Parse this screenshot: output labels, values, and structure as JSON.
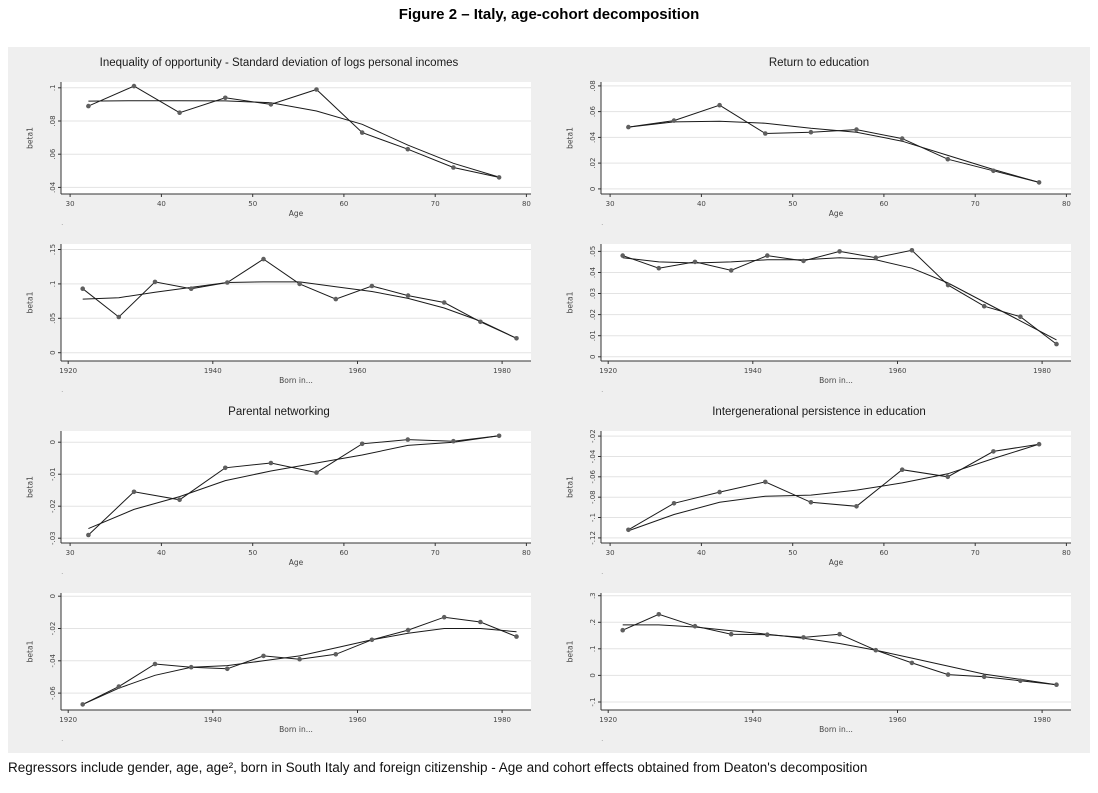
{
  "page": {
    "title": "Figure 2 – Italy, age-cohort decomposition",
    "caption": "Regressors include gender, age, age², born in South Italy and foreign citizenship - Age and cohort effects obtained from Deaton's decomposition"
  },
  "colors": {
    "figure_bg": "#efefef",
    "plot_bg": "#ffffff",
    "grid": "#e3e3e3",
    "axis": "#333333",
    "line": "#1a1a1a",
    "marker": "#5f5f5f",
    "tick_text": "#454545"
  },
  "panels": [
    {
      "title": "Inequality of opportunity - Standard deviation of logs personal incomes",
      "note": "."
    },
    {
      "title": "Return to education",
      "note": "."
    },
    {
      "title": "Parental networking",
      "note": "."
    },
    {
      "title": "Intergenerational persistence in education",
      "note": "."
    }
  ],
  "chart_data": [
    {
      "type": "line",
      "panel": 0,
      "role": "age-effect",
      "xlabel": "Age",
      "ylabel": "beta1",
      "note": ".",
      "x": [
        32,
        37,
        42,
        47,
        52,
        57,
        62,
        67,
        72,
        77
      ],
      "series": [
        {
          "name": "estimate",
          "values": [
            0.089,
            0.101,
            0.085,
            0.094,
            0.09,
            0.099,
            0.073,
            0.063,
            0.052,
            0.046
          ]
        },
        {
          "name": "smooth",
          "values": [
            0.092,
            0.0922,
            0.0922,
            0.0921,
            0.091,
            0.086,
            0.078,
            0.0655,
            0.0545,
            0.0462
          ]
        }
      ],
      "xlim": [
        29,
        80.5
      ],
      "ylim": [
        0.036,
        0.1035
      ],
      "xticks": [
        30,
        40,
        50,
        60,
        70,
        80
      ],
      "xtick_labels": [
        "30",
        "40",
        "50",
        "60",
        "70",
        "80"
      ],
      "yticks": [
        0.04,
        0.06,
        0.08,
        0.1
      ],
      "ytick_labels": [
        ".04",
        ".06",
        ".08",
        ".1"
      ],
      "grid": "horizontal",
      "legend": "none"
    },
    {
      "type": "line",
      "panel": 0,
      "role": "cohort-effect",
      "xlabel": "Born in...",
      "ylabel": "beta1",
      "note": ".",
      "x": [
        1922,
        1927,
        1932,
        1937,
        1942,
        1947,
        1952,
        1957,
        1962,
        1967,
        1972,
        1977,
        1982
      ],
      "series": [
        {
          "name": "estimate",
          "values": [
            0.093,
            0.052,
            0.103,
            0.093,
            0.102,
            0.136,
            0.1,
            0.078,
            0.097,
            0.083,
            0.073,
            0.045,
            0.021
          ]
        },
        {
          "name": "smooth",
          "values": [
            0.078,
            0.08,
            0.088,
            0.095,
            0.102,
            0.103,
            0.103,
            0.096,
            0.089,
            0.079,
            0.065,
            0.046,
            0.021
          ]
        }
      ],
      "xlim": [
        1919,
        1984
      ],
      "ylim": [
        -0.012,
        0.158
      ],
      "xticks": [
        1920,
        1940,
        1960,
        1980
      ],
      "xtick_labels": [
        "1920",
        "1940",
        "1960",
        "1980"
      ],
      "yticks": [
        0,
        0.05,
        0.1,
        0.15
      ],
      "ytick_labels": [
        "0",
        ".05",
        ".1",
        ".15"
      ],
      "grid": "horizontal",
      "legend": "none"
    },
    {
      "type": "line",
      "panel": 1,
      "role": "age-effect",
      "xlabel": "Age",
      "ylabel": "beta1",
      "note": ".",
      "x": [
        32,
        37,
        42,
        47,
        52,
        57,
        62,
        67,
        72,
        77
      ],
      "series": [
        {
          "name": "estimate",
          "values": [
            0.048,
            0.053,
            0.065,
            0.043,
            0.044,
            0.046,
            0.039,
            0.023,
            0.014,
            0.005
          ]
        },
        {
          "name": "smooth",
          "values": [
            0.048,
            0.052,
            0.0525,
            0.051,
            0.047,
            0.044,
            0.037,
            0.026,
            0.015,
            0.005
          ]
        }
      ],
      "xlim": [
        29,
        80.5
      ],
      "ylim": [
        -0.004,
        0.083
      ],
      "xticks": [
        30,
        40,
        50,
        60,
        70,
        80
      ],
      "xtick_labels": [
        "30",
        "40",
        "50",
        "60",
        "70",
        "80"
      ],
      "yticks": [
        0,
        0.02,
        0.04,
        0.06,
        0.08
      ],
      "ytick_labels": [
        "0",
        ".02",
        ".04",
        ".06",
        ".08"
      ],
      "grid": "horizontal",
      "legend": "none"
    },
    {
      "type": "line",
      "panel": 1,
      "role": "cohort-effect",
      "xlabel": "Born in...",
      "ylabel": "beta1",
      "note": ".",
      "x": [
        1922,
        1927,
        1932,
        1937,
        1942,
        1947,
        1952,
        1957,
        1962,
        1967,
        1972,
        1977,
        1982
      ],
      "series": [
        {
          "name": "estimate",
          "values": [
            0.048,
            0.042,
            0.045,
            0.041,
            0.048,
            0.0455,
            0.05,
            0.047,
            0.0505,
            0.034,
            0.024,
            0.019,
            0.006
          ]
        },
        {
          "name": "smooth",
          "values": [
            0.047,
            0.045,
            0.0445,
            0.045,
            0.046,
            0.046,
            0.047,
            0.046,
            0.042,
            0.035,
            0.026,
            0.017,
            0.008
          ]
        }
      ],
      "xlim": [
        1919,
        1984
      ],
      "ylim": [
        -0.002,
        0.0535
      ],
      "xticks": [
        1920,
        1940,
        1960,
        1980
      ],
      "xtick_labels": [
        "1920",
        "1940",
        "1960",
        "1980"
      ],
      "yticks": [
        0,
        0.01,
        0.02,
        0.03,
        0.04,
        0.05
      ],
      "ytick_labels": [
        "0",
        ".01",
        ".02",
        ".03",
        ".04",
        ".05"
      ],
      "grid": "horizontal",
      "legend": "none"
    },
    {
      "type": "line",
      "panel": 2,
      "role": "age-effect",
      "xlabel": "Age",
      "ylabel": "beta1",
      "note": ".",
      "x": [
        32,
        37,
        42,
        47,
        52,
        57,
        62,
        67,
        72,
        77
      ],
      "series": [
        {
          "name": "estimate",
          "values": [
            -0.029,
            -0.0155,
            -0.018,
            -0.008,
            -0.0065,
            -0.0095,
            -0.0005,
            0.0008,
            0.0003,
            0.002
          ]
        },
        {
          "name": "smooth",
          "values": [
            -0.027,
            -0.021,
            -0.017,
            -0.012,
            -0.009,
            -0.0065,
            -0.004,
            -0.001,
            0.0,
            0.002
          ]
        }
      ],
      "xlim": [
        29,
        80.5
      ],
      "ylim": [
        -0.0315,
        0.0035
      ],
      "xticks": [
        30,
        40,
        50,
        60,
        70,
        80
      ],
      "xtick_labels": [
        "30",
        "40",
        "50",
        "60",
        "70",
        "80"
      ],
      "yticks": [
        0,
        -0.01,
        -0.02,
        -0.03
      ],
      "ytick_labels": [
        "0",
        "-.01",
        "-.02",
        "-.03"
      ],
      "grid": "horizontal",
      "legend": "none"
    },
    {
      "type": "line",
      "panel": 2,
      "role": "cohort-effect",
      "xlabel": "Born in...",
      "ylabel": "beta1",
      "note": ".",
      "x": [
        1922,
        1927,
        1932,
        1937,
        1942,
        1947,
        1952,
        1957,
        1962,
        1967,
        1972,
        1977,
        1982
      ],
      "series": [
        {
          "name": "estimate",
          "values": [
            -0.067,
            -0.056,
            -0.042,
            -0.044,
            -0.045,
            -0.037,
            -0.039,
            -0.036,
            -0.027,
            -0.021,
            -0.013,
            -0.016,
            -0.025
          ]
        },
        {
          "name": "smooth",
          "values": [
            -0.067,
            -0.057,
            -0.049,
            -0.044,
            -0.043,
            -0.04,
            -0.037,
            -0.032,
            -0.027,
            -0.023,
            -0.02,
            -0.02,
            -0.022
          ]
        }
      ],
      "xlim": [
        1919,
        1984
      ],
      "ylim": [
        -0.0705,
        0.002
      ],
      "xticks": [
        1920,
        1940,
        1960,
        1980
      ],
      "xtick_labels": [
        "1920",
        "1940",
        "1960",
        "1980"
      ],
      "yticks": [
        0,
        -0.02,
        -0.04,
        -0.06
      ],
      "ytick_labels": [
        "0",
        "-.02",
        "-.04",
        "-.06"
      ],
      "grid": "horizontal",
      "legend": "none"
    },
    {
      "type": "line",
      "panel": 3,
      "role": "age-effect",
      "xlabel": "Age",
      "ylabel": "beta1",
      "note": ".",
      "x": [
        32,
        37,
        42,
        47,
        52,
        57,
        62,
        67,
        72,
        77
      ],
      "series": [
        {
          "name": "estimate",
          "values": [
            -0.112,
            -0.086,
            -0.075,
            -0.065,
            -0.085,
            -0.089,
            -0.053,
            -0.06,
            -0.035,
            -0.028
          ]
        },
        {
          "name": "smooth",
          "values": [
            -0.113,
            -0.097,
            -0.085,
            -0.079,
            -0.078,
            -0.073,
            -0.066,
            -0.057,
            -0.042,
            -0.028
          ]
        }
      ],
      "xlim": [
        29,
        80.5
      ],
      "ylim": [
        -0.125,
        -0.015
      ],
      "xticks": [
        30,
        40,
        50,
        60,
        70,
        80
      ],
      "xtick_labels": [
        "30",
        "40",
        "50",
        "60",
        "70",
        "80"
      ],
      "yticks": [
        -0.02,
        -0.04,
        -0.06,
        -0.08,
        -0.1,
        -0.12
      ],
      "ytick_labels": [
        "-.02",
        "-.04",
        "-.06",
        "-.08",
        "-.1",
        "-.12"
      ],
      "grid": "horizontal",
      "legend": "none"
    },
    {
      "type": "line",
      "panel": 3,
      "role": "cohort-effect",
      "xlabel": "Born in...",
      "ylabel": "beta1",
      "note": ".",
      "x": [
        1922,
        1927,
        1932,
        1937,
        1942,
        1947,
        1952,
        1957,
        1962,
        1967,
        1972,
        1977,
        1982
      ],
      "series": [
        {
          "name": "estimate",
          "values": [
            0.17,
            0.23,
            0.185,
            0.155,
            0.153,
            0.143,
            0.155,
            0.095,
            0.047,
            0.003,
            -0.005,
            -0.02,
            -0.035
          ]
        },
        {
          "name": "smooth",
          "values": [
            0.19,
            0.19,
            0.182,
            0.168,
            0.155,
            0.14,
            0.12,
            0.095,
            0.065,
            0.035,
            0.005,
            -0.015,
            -0.035
          ]
        }
      ],
      "xlim": [
        1919,
        1984
      ],
      "ylim": [
        -0.13,
        0.31
      ],
      "xticks": [
        1920,
        1940,
        1960,
        1980
      ],
      "xtick_labels": [
        "1920",
        "1940",
        "1960",
        "1980"
      ],
      "yticks": [
        0.3,
        0.2,
        0.1,
        0,
        -0.1
      ],
      "ytick_labels": [
        ".3",
        ".2",
        ".1",
        "0",
        "-.1"
      ],
      "grid": "horizontal",
      "legend": "none"
    }
  ]
}
